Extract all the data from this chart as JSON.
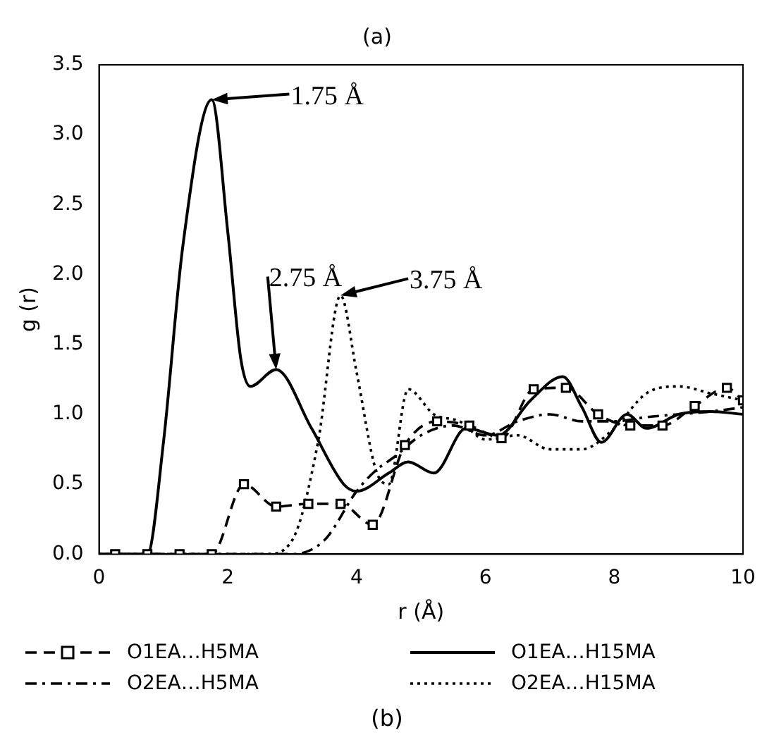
{
  "chart_data": {
    "type": "line",
    "title": "(a)",
    "xlabel": "r (Å)",
    "ylabel": "g (r)",
    "xlim": [
      0,
      10
    ],
    "ylim": [
      0,
      3.5
    ],
    "xticks": [
      0,
      2,
      4,
      6,
      8,
      10
    ],
    "yticks": [
      {
        "value": 0,
        "label": "0.0"
      },
      {
        "value": 0.5,
        "label": "0.5"
      },
      {
        "value": 1,
        "label": "1.0"
      },
      {
        "value": 1.5,
        "label": "1.5"
      },
      {
        "value": 2,
        "label": "2.0"
      },
      {
        "value": 2.5,
        "label": "2.5"
      },
      {
        "value": 3,
        "label": "3.0"
      },
      {
        "value": 3.5,
        "label": "3.5"
      }
    ],
    "grid": false,
    "legend": "bottom",
    "series": [
      {
        "name": "O1EA…H5MA",
        "color": "#000000",
        "marker": "square",
        "line_style": "dashed",
        "x": [
          0.25,
          0.75,
          1.25,
          1.75,
          2.25,
          2.75,
          3.25,
          3.75,
          4.25,
          4.75,
          5.25,
          5.75,
          6.25,
          6.75,
          7.25,
          7.75,
          8.25,
          8.75,
          9.25,
          9.75,
          10
        ],
        "values": [
          0,
          0,
          0,
          0,
          0.5,
          0.34,
          0.36,
          0.36,
          0.21,
          0.78,
          0.95,
          0.92,
          0.83,
          1.18,
          1.19,
          1.0,
          0.92,
          0.92,
          1.06,
          1.19,
          1.1
        ]
      },
      {
        "name": "O1EA…H15MA",
        "color": "#000000",
        "marker": "none",
        "line_style": "solid",
        "x": [
          0,
          0.75,
          1.0,
          1.3,
          1.75,
          2.0,
          2.2,
          2.35,
          2.75,
          3.3,
          3.8,
          4.0,
          4.5,
          4.8,
          5.2,
          5.7,
          6.2,
          6.7,
          7.2,
          7.5,
          7.8,
          8.2,
          8.5,
          9.0,
          9.5,
          10
        ],
        "values": [
          0,
          0,
          0.8,
          2.2,
          3.25,
          2.3,
          1.4,
          1.2,
          1.32,
          0.9,
          0.5,
          0.45,
          0.58,
          0.66,
          0.58,
          0.9,
          0.85,
          1.1,
          1.27,
          1.05,
          0.8,
          1.0,
          0.9,
          1.0,
          1.02,
          1.0
        ]
      },
      {
        "name": "O2EA…H5MA",
        "color": "#000000",
        "marker": "none",
        "line_style": "dashdot",
        "x": [
          0,
          3.0,
          3.5,
          4.0,
          4.3,
          4.6,
          5.0,
          5.5,
          6.0,
          6.5,
          7.0,
          7.5,
          8.0,
          8.5,
          9.0,
          9.5,
          10
        ],
        "values": [
          0,
          0,
          0.1,
          0.45,
          0.6,
          0.7,
          0.85,
          0.92,
          0.85,
          0.95,
          1.0,
          0.95,
          0.95,
          0.98,
          1.0,
          1.02,
          1.05
        ]
      },
      {
        "name": "O2EA…H15MA",
        "color": "#000000",
        "marker": "none",
        "line_style": "dotted",
        "x": [
          0,
          2.6,
          3.0,
          3.4,
          3.75,
          4.0,
          4.3,
          4.5,
          4.8,
          5.2,
          5.6,
          6.0,
          6.5,
          7.0,
          7.5,
          8.0,
          8.5,
          9.0,
          9.5,
          10
        ],
        "values": [
          0,
          0,
          0.1,
          0.8,
          1.85,
          1.3,
          0.6,
          0.5,
          1.18,
          1.0,
          0.95,
          0.82,
          0.85,
          0.75,
          0.75,
          0.9,
          1.15,
          1.2,
          1.15,
          1.1
        ]
      }
    ],
    "annotations": [
      {
        "text": "1.75 Å",
        "x": 1.75,
        "y": 3.25
      },
      {
        "text": "2.75 Å",
        "x": 2.75,
        "y": 1.32
      },
      {
        "text": "3.75 Å",
        "x": 3.75,
        "y": 1.85
      },
      "(b)"
    ]
  }
}
